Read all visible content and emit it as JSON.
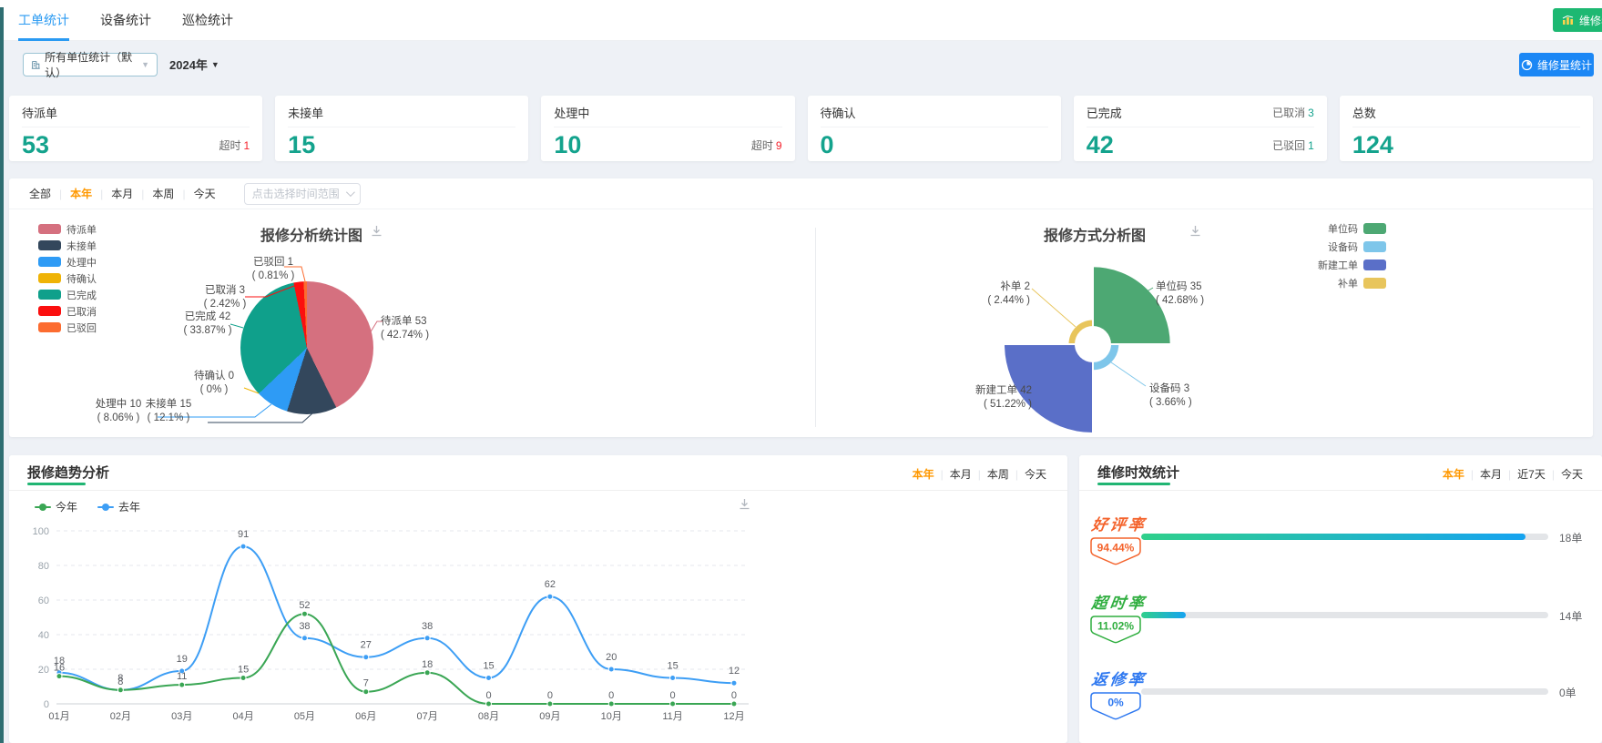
{
  "topbar": {
    "tabs": [
      {
        "label": "工单统计",
        "active": true
      },
      {
        "label": "设备统计",
        "active": false
      },
      {
        "label": "巡检统计",
        "active": false
      }
    ],
    "annual_report_button": {
      "label": "维修年报"
    },
    "volume_button": {
      "label": "维修量统计"
    }
  },
  "toolbar": {
    "unit_select": {
      "value": "所有单位统计（默认）"
    },
    "year_select": {
      "value": "2024年"
    }
  },
  "stat_cards": [
    {
      "title": "待派单",
      "value": "53",
      "extras": [
        {
          "label": "超时",
          "value": "1",
          "color": "#f5222d"
        }
      ]
    },
    {
      "title": "未接单",
      "value": "15",
      "extras": []
    },
    {
      "title": "处理中",
      "value": "10",
      "extras": [
        {
          "label": "超时",
          "value": "9",
          "color": "#f5222d"
        }
      ]
    },
    {
      "title": "待确认",
      "value": "0",
      "extras": []
    },
    {
      "title": "已完成",
      "value": "42",
      "extras": [
        {
          "label": "已取消",
          "value": "3",
          "color": "#14a38d"
        },
        {
          "label": "已驳回",
          "value": "1",
          "color": "#14a38d"
        }
      ]
    },
    {
      "title": "总数",
      "value": "124",
      "extras": []
    }
  ],
  "time_filter": {
    "options": [
      "全部",
      "本年",
      "本月",
      "本周",
      "今天"
    ],
    "active": "本年",
    "range_placeholder": "点击选择时间范围"
  },
  "pie_section": {
    "left": {
      "title": "报修分析统计图",
      "callouts": [
        {
          "line1": "待派单 53",
          "line2": "( 42.74% )"
        },
        {
          "line1": "未接单 15",
          "line2": "( 12.1% )"
        },
        {
          "line1": "处理中 10",
          "line2": "( 8.06% )"
        },
        {
          "line1": "待确认 0",
          "line2": "( 0% )"
        },
        {
          "line1": "已完成 42",
          "line2": "( 33.87% )"
        },
        {
          "line1": "已取消 3",
          "line2": "( 2.42% )"
        },
        {
          "line1": "已驳回 1",
          "line2": "( 0.81% )"
        }
      ]
    },
    "right": {
      "title": "报修方式分析图",
      "callouts": [
        {
          "line1": "单位码 35",
          "line2": "( 42.68% )"
        },
        {
          "line1": "设备码 3",
          "line2": "( 3.66% )"
        },
        {
          "line1": "新建工单 42",
          "line2": "( 51.22% )"
        },
        {
          "line1": "补单 2",
          "line2": "( 2.44% )"
        }
      ]
    }
  },
  "trend": {
    "title": "报修趋势分析",
    "filters": [
      "本年",
      "本月",
      "本周",
      "今天"
    ],
    "active": "本年"
  },
  "gauges": {
    "title": "维修时效统计",
    "filters": [
      "本年",
      "本月",
      "近7天",
      "今天"
    ],
    "active": "本年",
    "items": [
      {
        "label": "好评率",
        "pct": "94.44%",
        "value": 94.44,
        "count": "18单",
        "color": "#f4632c"
      },
      {
        "label": "超时率",
        "pct": "11.02%",
        "value": 11.02,
        "count": "14单",
        "color": "#2fae3f"
      },
      {
        "label": "返修率",
        "pct": "0%",
        "value": 0,
        "count": "0单",
        "color": "#2e78f0"
      }
    ]
  },
  "chart_data": [
    {
      "type": "pie",
      "title": "报修分析统计图",
      "legend_position": "left",
      "labels": [
        "待派单",
        "未接单",
        "处理中",
        "待确认",
        "已完成",
        "已取消",
        "已驳回"
      ],
      "values": [
        53,
        15,
        10,
        0,
        42,
        3,
        1
      ],
      "percents": [
        42.74,
        12.1,
        8.06,
        0,
        33.87,
        2.42,
        0.81
      ],
      "colors": [
        "#d5707f",
        "#33475c",
        "#2e9bf5",
        "#efb306",
        "#0fa08b",
        "#fb0f0f",
        "#fc6c30"
      ]
    },
    {
      "type": "pie",
      "subtype": "rose",
      "title": "报修方式分析图",
      "legend_position": "right",
      "labels": [
        "单位码",
        "设备码",
        "新建工单",
        "补单"
      ],
      "values": [
        35,
        3,
        42,
        2
      ],
      "percents": [
        42.68,
        3.66,
        51.22,
        2.44
      ],
      "colors": [
        "#4da873",
        "#7ec6ea",
        "#5a6fc8",
        "#e8c55c"
      ]
    },
    {
      "type": "line",
      "title": "报修趋势分析",
      "categories": [
        "01月",
        "02月",
        "03月",
        "04月",
        "05月",
        "06月",
        "07月",
        "08月",
        "09月",
        "10月",
        "11月",
        "12月"
      ],
      "series": [
        {
          "name": "今年",
          "color": "#3aa654",
          "values": [
            16,
            8,
            11,
            15,
            52,
            7,
            18,
            0,
            0,
            0,
            0,
            0
          ]
        },
        {
          "name": "去年",
          "color": "#3d9ef5",
          "values": [
            18,
            8,
            19,
            91,
            38,
            27,
            38,
            15,
            62,
            20,
            15,
            12
          ]
        }
      ],
      "ylim": [
        0,
        100
      ],
      "yticks": [
        0,
        20,
        40,
        60,
        80,
        100
      ],
      "grid": "dashed",
      "legend_position": "top-left"
    }
  ]
}
